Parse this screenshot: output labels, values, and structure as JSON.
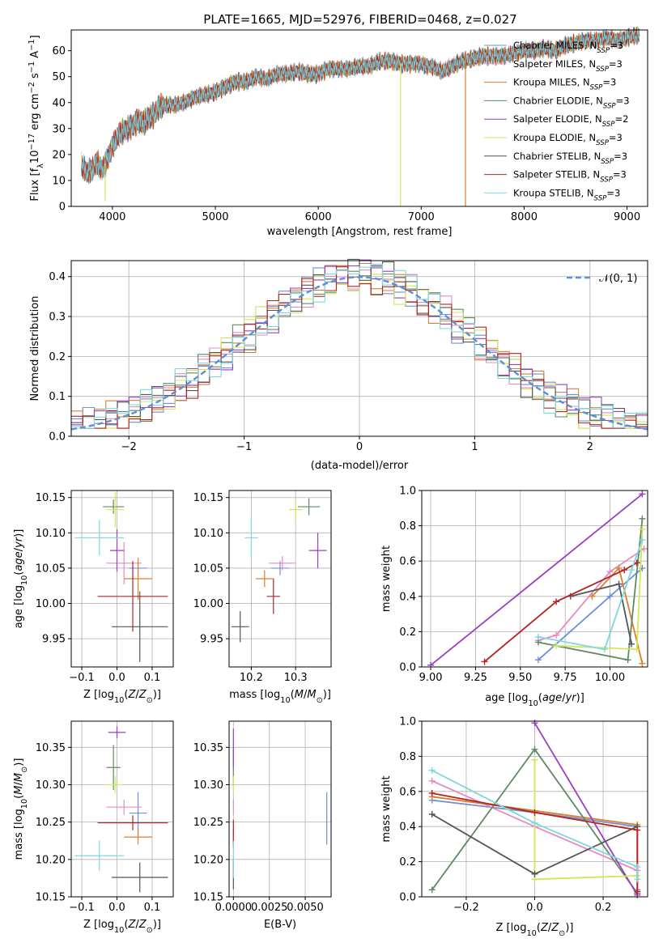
{
  "chart_data": [
    {
      "type": "line",
      "title": "PLATE=1665, MJD=52976, FIBERID=0468, z=0.027",
      "xlabel": "wavelength [Angstrom, rest frame]",
      "ylabel": "Flux [fλ 10⁻¹⁷ erg cm⁻² s⁻¹ A⁻¹]",
      "xlim": [
        3600,
        9200
      ],
      "ylim": [
        0,
        68
      ],
      "xticks": [
        "4000",
        "5000",
        "6000",
        "7000",
        "8000",
        "9000"
      ],
      "yticks": [
        "0",
        "10",
        "20",
        "30",
        "40",
        "50",
        "60"
      ],
      "grid": false,
      "legend_position": "right",
      "continuum": {
        "x": [
          3700,
          3750,
          3800,
          3850,
          3900,
          3950,
          4000,
          4050,
          4100,
          4150,
          4200,
          4250,
          4300,
          4350,
          4400,
          4450,
          4500,
          4600,
          4700,
          4800,
          4900,
          5000,
          5100,
          5200,
          5300,
          5400,
          5500,
          5600,
          5700,
          5800,
          5900,
          6000,
          6100,
          6200,
          6300,
          6400,
          6500,
          6600,
          6700,
          6800,
          6900,
          7000,
          7050,
          7100,
          7150,
          7200,
          7300,
          7400,
          7500,
          7600,
          7700,
          7800,
          7900,
          8000,
          8100,
          8200,
          8300,
          8400,
          8500,
          8600,
          8700,
          8800,
          8900,
          9000,
          9100
        ],
        "y": [
          16,
          13,
          14,
          17,
          14,
          18,
          23,
          27,
          29,
          30,
          31,
          33,
          32,
          34,
          35,
          38,
          39,
          39,
          40,
          42,
          43,
          44,
          46,
          48,
          48,
          50,
          49,
          51,
          51,
          52,
          51,
          51,
          53,
          53,
          53,
          54,
          54,
          56,
          56,
          55,
          55,
          55,
          54,
          54,
          53,
          52,
          54,
          56,
          57,
          58,
          58,
          58,
          59,
          60,
          60,
          61,
          60,
          62,
          63,
          64,
          64,
          65,
          64,
          65,
          66
        ]
      },
      "drop_lines": [
        {
          "x": 3930,
          "y_to": 2
        },
        {
          "x": 6800,
          "y_to": 0
        },
        {
          "x": 7430,
          "y_to": 0
        }
      ],
      "series": [
        {
          "name": "Chabrier MILES, N",
          "sub": "SSP",
          "suffix": "=3",
          "color": "#6e8fd4"
        },
        {
          "name": "Salpeter MILES, N",
          "sub": "SSP",
          "suffix": "=3",
          "color": "#e58ac4"
        },
        {
          "name": "Kroupa MILES, N",
          "sub": "SSP",
          "suffix": "=3",
          "color": "#d9802e"
        },
        {
          "name": "Chabrier ELODIE, N",
          "sub": "SSP",
          "suffix": "=3",
          "color": "#5f8a63"
        },
        {
          "name": "Salpeter ELODIE, N",
          "sub": "SSP",
          "suffix": "=2",
          "color": "#9b3ec0"
        },
        {
          "name": "Kroupa ELODIE, N",
          "sub": "SSP",
          "suffix": "=3",
          "color": "#d2e65c"
        },
        {
          "name": "Chabrier STELIB, N",
          "sub": "SSP",
          "suffix": "=3",
          "color": "#555555"
        },
        {
          "name": "Salpeter STELIB, N",
          "sub": "SSP",
          "suffix": "=3",
          "color": "#b32424"
        },
        {
          "name": "Kroupa STELIB, N",
          "sub": "SSP",
          "suffix": "=3",
          "color": "#7fd7df"
        }
      ]
    },
    {
      "type": "line",
      "xlabel": "(data-model)/error",
      "ylabel": "Normed distribution",
      "xlim": [
        -2.5,
        2.5
      ],
      "ylim": [
        0,
        0.44
      ],
      "xticks": [
        "−2",
        "−1",
        "0",
        "1",
        "2"
      ],
      "yticks": [
        "0.0",
        "0.1",
        "0.2",
        "0.3",
        "0.4"
      ],
      "grid": true,
      "legend_position": "top-right",
      "legend_label": "𝒩(0, 1)",
      "gaussian": {
        "mu": 0,
        "sigma": 1,
        "color": "#5b8fd6"
      },
      "histogram": {
        "bin_width": 0.1,
        "offsets": [
          0.04,
          -0.03,
          0.02,
          0.05,
          -0.02,
          0.03,
          0.0,
          -0.04,
          0.01,
          0.035,
          -0.015,
          0.025,
          -0.035,
          0.015,
          0.045,
          -0.025,
          0.005,
          -0.01,
          0.03,
          -0.045
        ]
      }
    },
    {
      "type": "scatter",
      "xlabel": "Z [log10(Z/Z⊙)]",
      "ylabel": "age  [log10(age/yr)]",
      "xlim": [
        -0.13,
        0.16
      ],
      "ylim": [
        9.91,
        10.16
      ],
      "xticks": [
        "−0.1",
        "0.0",
        "0.1"
      ],
      "yticks": [
        "9.95",
        "10.00",
        "10.05",
        "10.10",
        "10.15"
      ],
      "points": [
        {
          "x": 0.06,
          "y": 10.05,
          "xerr": 0.025,
          "yerr": 0.01
        },
        {
          "x": 0.02,
          "y": 10.057,
          "xerr": 0.05,
          "yerr": 0.03
        },
        {
          "x": 0.06,
          "y": 10.035,
          "xerr": 0.04,
          "yerr": 0.03
        },
        {
          "x": -0.01,
          "y": 10.137,
          "xerr": 0.03,
          "yerr": 0.01
        },
        {
          "x": 0.0,
          "y": 10.075,
          "xerr": 0.02,
          "yerr": 0.03
        },
        {
          "x": -0.005,
          "y": 10.133,
          "xerr": 0.025,
          "yerr": 0.025
        },
        {
          "x": 0.065,
          "y": 9.967,
          "xerr": 0.08,
          "yerr": 0.05
        },
        {
          "x": 0.045,
          "y": 10.01,
          "xerr": 0.1,
          "yerr": 0.05
        },
        {
          "x": -0.05,
          "y": 10.093,
          "xerr": 0.07,
          "yerr": 0.025
        }
      ]
    },
    {
      "type": "scatter",
      "xlabel": "mass [log10(M/M⊙)]",
      "xlim": [
        10.15,
        10.38
      ],
      "ylim": [
        9.91,
        10.16
      ],
      "xticks": [
        "10.2",
        "10.3"
      ],
      "yticks": [
        "9.95",
        "10.00",
        "10.05",
        "10.10",
        "10.15"
      ],
      "points": [
        {
          "x": 10.265,
          "y": 10.05,
          "xerr": 0.02,
          "yerr": 0.01
        },
        {
          "x": 10.27,
          "y": 10.057,
          "xerr": 0.03,
          "yerr": 0.01
        },
        {
          "x": 10.23,
          "y": 10.035,
          "xerr": 0.02,
          "yerr": 0.012
        },
        {
          "x": 10.33,
          "y": 10.137,
          "xerr": 0.025,
          "yerr": 0.012
        },
        {
          "x": 10.35,
          "y": 10.075,
          "xerr": 0.02,
          "yerr": 0.025
        },
        {
          "x": 10.3,
          "y": 10.133,
          "xerr": 0.015,
          "yerr": 0.015
        },
        {
          "x": 10.175,
          "y": 9.967,
          "xerr": 0.02,
          "yerr": 0.022
        },
        {
          "x": 10.25,
          "y": 10.01,
          "xerr": 0.015,
          "yerr": 0.025
        },
        {
          "x": 10.2,
          "y": 10.093,
          "xerr": 0.015,
          "yerr": 0.03
        }
      ]
    },
    {
      "type": "line",
      "xlabel": "age  [log10(age/yr)]",
      "ylabel": "mass weight",
      "xlim": [
        8.95,
        10.21
      ],
      "ylim": [
        0,
        1
      ],
      "xticks": [
        "9.00",
        "9.25",
        "9.50",
        "9.75",
        "10.00"
      ],
      "yticks": [
        "0.0",
        "0.2",
        "0.4",
        "0.6",
        "0.8",
        "1.0"
      ],
      "grid": true,
      "series": [
        {
          "x": [
            9.6,
            10.0,
            10.18
          ],
          "y": [
            0.04,
            0.4,
            0.56
          ]
        },
        {
          "x": [
            9.6,
            9.7,
            10.0,
            10.19
          ],
          "y": [
            0.15,
            0.18,
            0.54,
            0.67
          ]
        },
        {
          "x": [
            9.9,
            10.05,
            10.18
          ],
          "y": [
            0.4,
            0.56,
            0.02
          ]
        },
        {
          "x": [
            9.6,
            10.1,
            10.18
          ],
          "y": [
            0.14,
            0.04,
            0.84
          ]
        },
        {
          "x": [
            9.0,
            10.18
          ],
          "y": [
            0.01,
            0.98
          ]
        },
        {
          "x": [
            9.7,
            10.15,
            10.18
          ],
          "y": [
            0.12,
            0.1,
            0.78
          ]
        },
        {
          "x": [
            9.78,
            10.05,
            10.12
          ],
          "y": [
            0.4,
            0.47,
            0.13
          ]
        },
        {
          "x": [
            9.3,
            9.7,
            10.08,
            10.15
          ],
          "y": [
            0.03,
            0.37,
            0.55,
            0.59
          ]
        },
        {
          "x": [
            9.6,
            9.97,
            10.12,
            10.18
          ],
          "y": [
            0.17,
            0.1,
            0.55,
            0.72
          ]
        }
      ]
    },
    {
      "type": "scatter",
      "xlabel": "Z [log10(Z/Z⊙)]",
      "ylabel": "mass  [log10(M/M⊙)]",
      "xlim": [
        -0.13,
        0.16
      ],
      "ylim": [
        10.15,
        10.385
      ],
      "xticks": [
        "−0.1",
        "0.0",
        "0.1"
      ],
      "yticks": [
        "10.15",
        "10.20",
        "10.25",
        "10.30",
        "10.35"
      ],
      "points": [
        {
          "x": 0.06,
          "y": 10.262,
          "xerr": 0.025,
          "yerr": 0.028
        },
        {
          "x": 0.02,
          "y": 10.27,
          "xerr": 0.05,
          "yerr": 0.01
        },
        {
          "x": 0.06,
          "y": 10.23,
          "xerr": 0.04,
          "yerr": 0.01
        },
        {
          "x": -0.01,
          "y": 10.323,
          "xerr": 0.02,
          "yerr": 0.03
        },
        {
          "x": 0.0,
          "y": 10.37,
          "xerr": 0.025,
          "yerr": 0.008
        },
        {
          "x": -0.005,
          "y": 10.3,
          "xerr": 0.025,
          "yerr": 0.012
        },
        {
          "x": 0.065,
          "y": 10.176,
          "xerr": 0.08,
          "yerr": 0.02
        },
        {
          "x": 0.045,
          "y": 10.249,
          "xerr": 0.1,
          "yerr": 0.01
        },
        {
          "x": -0.05,
          "y": 10.205,
          "xerr": 0.07,
          "yerr": 0.02
        }
      ]
    },
    {
      "type": "scatter",
      "xlabel": "E(B-V)",
      "xlim": [
        -0.0003,
        0.0068
      ],
      "ylim": [
        10.15,
        10.385
      ],
      "xticks": [
        "0.0000",
        "0.0025",
        "0.0050"
      ],
      "yticks": [
        "10.15",
        "10.20",
        "10.25",
        "10.30",
        "10.35"
      ],
      "points": [
        {
          "x": 0.0065,
          "y": 10.255,
          "xerr": 0,
          "yerr": 0.035
        },
        {
          "x": 0.0,
          "y": 10.27,
          "xerr": 0,
          "yerr": 0.01
        },
        {
          "x": 0.0,
          "y": 10.23,
          "xerr": 0,
          "yerr": 0.01
        },
        {
          "x": 0.0,
          "y": 10.323,
          "xerr": 0,
          "yerr": 0.025
        },
        {
          "x": 0.0,
          "y": 10.35,
          "xerr": 0,
          "yerr": 0.025
        },
        {
          "x": 0.0,
          "y": 10.3,
          "xerr": 0,
          "yerr": 0.012
        },
        {
          "x": 0.0,
          "y": 10.18,
          "xerr": 0,
          "yerr": 0.02
        },
        {
          "x": 0.0,
          "y": 10.235,
          "xerr": 0,
          "yerr": 0.018
        },
        {
          "x": 0.0,
          "y": 10.2,
          "xerr": 0,
          "yerr": 0.025
        }
      ]
    },
    {
      "type": "line",
      "xlabel": "Z [log10(Z/Z⊙)]",
      "ylabel": "mass weight",
      "xlim": [
        -0.33,
        0.33
      ],
      "ylim": [
        0,
        1
      ],
      "xticks": [
        "−0.2",
        "0.0",
        "0.2"
      ],
      "yticks": [
        "0.0",
        "0.2",
        "0.4",
        "0.6",
        "0.8",
        "1.0"
      ],
      "grid": true,
      "series": [
        {
          "x": [
            -0.3,
            0.0,
            0.3,
            0.3
          ],
          "y": [
            0.55,
            0.48,
            0.4,
            0.04
          ]
        },
        {
          "x": [
            -0.3,
            0.0,
            0.3,
            0.3
          ],
          "y": [
            0.66,
            0.4,
            0.15,
            0.02
          ]
        },
        {
          "x": [
            -0.3,
            0.0,
            0.3,
            0.3
          ],
          "y": [
            0.57,
            0.49,
            0.41,
            0.02
          ]
        },
        {
          "x": [
            -0.3,
            0.0,
            0.3
          ],
          "y": [
            0.04,
            0.84,
            0.02
          ]
        },
        {
          "x": [
            0.0,
            0.3
          ],
          "y": [
            0.99,
            0.01
          ]
        },
        {
          "x": [
            0.0,
            0.0,
            0.3
          ],
          "y": [
            0.78,
            0.1,
            0.12
          ]
        },
        {
          "x": [
            -0.3,
            0.0,
            0.3
          ],
          "y": [
            0.47,
            0.13,
            0.4
          ]
        },
        {
          "x": [
            -0.3,
            0.0,
            0.3,
            0.3
          ],
          "y": [
            0.59,
            0.48,
            0.38,
            0.03
          ]
        },
        {
          "x": [
            -0.3,
            0.0,
            0.3,
            0.3
          ],
          "y": [
            0.72,
            0.42,
            0.17,
            0.1
          ]
        }
      ]
    }
  ]
}
